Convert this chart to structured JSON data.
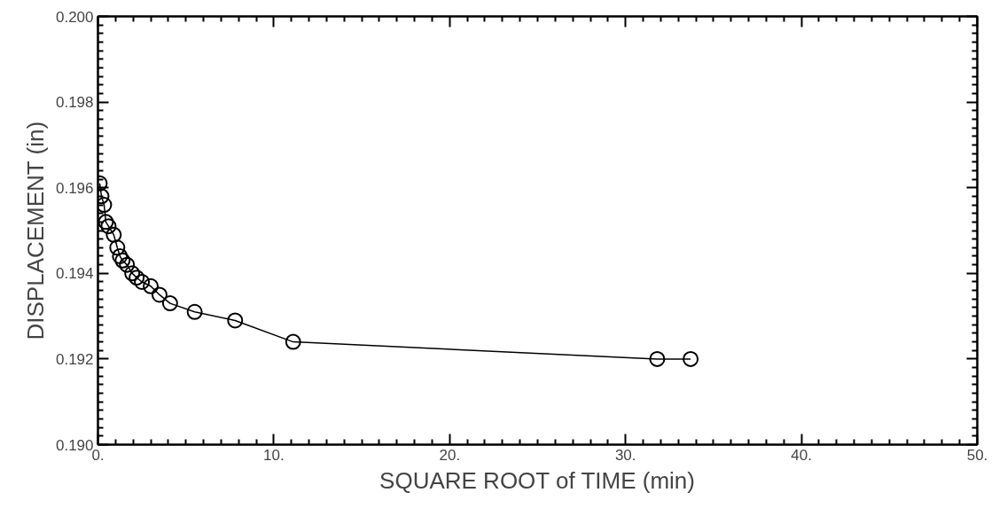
{
  "chart_data": {
    "type": "line",
    "xlabel": "SQUARE ROOT of TIME (min)",
    "ylabel": "DISPLACEMENT (in)",
    "x": [
      0.1,
      0.2,
      0.35,
      0.45,
      0.6,
      0.9,
      1.1,
      1.25,
      1.4,
      1.65,
      1.95,
      2.2,
      2.5,
      3.0,
      3.5,
      4.1,
      5.5,
      7.8,
      11.1,
      31.8,
      33.7
    ],
    "series": [
      {
        "color": "#000000",
        "values": [
          0.1961,
          0.1958,
          0.1956,
          0.1952,
          0.1951,
          0.1949,
          0.1946,
          0.1944,
          0.1943,
          0.1942,
          0.194,
          0.1939,
          0.1938,
          0.1937,
          0.1935,
          0.1933,
          0.1931,
          0.1929,
          0.1924,
          0.192,
          0.192
        ]
      }
    ],
    "xlim": [
      0,
      50
    ],
    "ylim": [
      0.19,
      0.2
    ],
    "xticks": [
      {
        "value": 0,
        "label": "0."
      },
      {
        "value": 10,
        "label": "10."
      },
      {
        "value": 20,
        "label": "20."
      },
      {
        "value": 30,
        "label": "30."
      },
      {
        "value": 40,
        "label": "40."
      },
      {
        "value": 50,
        "label": "50."
      }
    ],
    "yticks": [
      {
        "value": 0.19,
        "label": "0.190"
      },
      {
        "value": 0.192,
        "label": "0.192"
      },
      {
        "value": 0.194,
        "label": "0.194"
      },
      {
        "value": 0.196,
        "label": "0.196"
      },
      {
        "value": 0.198,
        "label": "0.198"
      },
      {
        "value": 0.2,
        "label": "0.200"
      }
    ],
    "marker": "circle",
    "line_style": "solid",
    "grid": false
  }
}
